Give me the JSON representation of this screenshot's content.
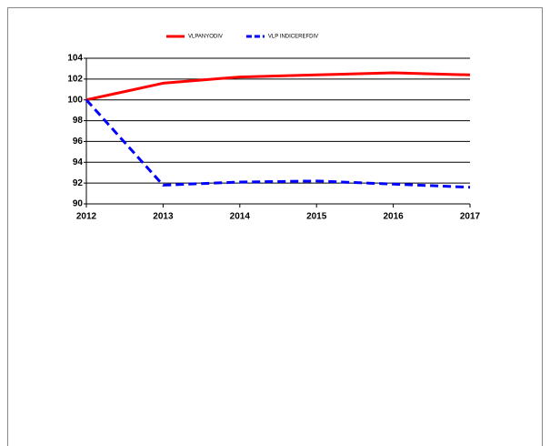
{
  "chart_data": {
    "type": "line",
    "x": [
      2012,
      2013,
      2014,
      2015,
      2016,
      2017
    ],
    "series": [
      {
        "name": "VLPANYODIV",
        "color": "#ff0000",
        "dash": false,
        "values": [
          100,
          101.6,
          102.2,
          102.4,
          102.6,
          102.4
        ]
      },
      {
        "name": "VLP INDICEREFDIV",
        "color": "#0000ff",
        "dash": true,
        "values": [
          100,
          91.8,
          92.1,
          92.2,
          91.9,
          91.6
        ]
      }
    ],
    "xlim": [
      2012,
      2017
    ],
    "xticks": [
      2012,
      2013,
      2014,
      2015,
      2016,
      2017
    ],
    "ylim": [
      90,
      104
    ],
    "yticks": [
      90,
      92,
      94,
      96,
      98,
      100,
      102,
      104
    ],
    "grid": true,
    "legend": "top"
  }
}
